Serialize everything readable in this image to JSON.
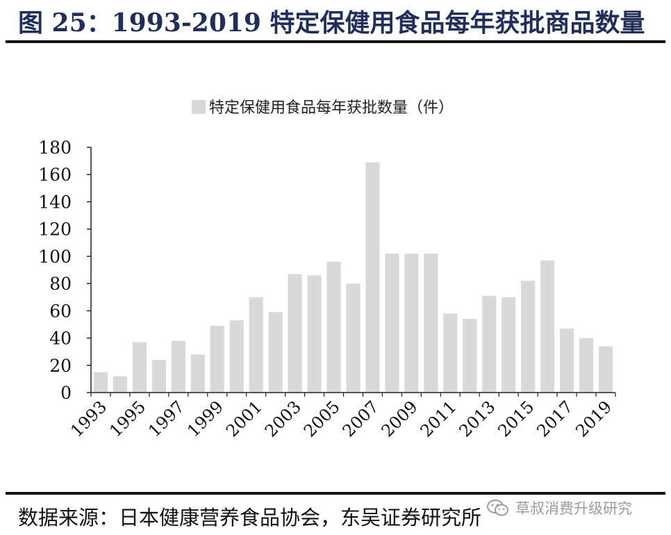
{
  "header": {
    "title": "图 25：1993-2019 特定保健用食品每年获批商品数量"
  },
  "chart_data": {
    "type": "bar",
    "title": "",
    "xlabel": "",
    "ylabel": "",
    "legend": {
      "label": "特定保健用食品每年获批数量（件）",
      "placement": "top-center"
    },
    "ylim": [
      0,
      180
    ],
    "yticks": [
      0,
      20,
      40,
      60,
      80,
      100,
      120,
      140,
      160,
      180
    ],
    "grid": false,
    "bar_color": "#d9d9d9",
    "categories": [
      "1993",
      "1994",
      "1995",
      "1996",
      "1997",
      "1998",
      "1999",
      "2000",
      "2001",
      "2002",
      "2003",
      "2004",
      "2005",
      "2006",
      "2007",
      "2008",
      "2009",
      "2010",
      "2011",
      "2012",
      "2013",
      "2014",
      "2015",
      "2016",
      "2017",
      "2018",
      "2019"
    ],
    "x_tick_labels": [
      "1993",
      "1995",
      "1997",
      "1999",
      "2001",
      "2003",
      "2005",
      "2007",
      "2009",
      "2011",
      "2013",
      "2015",
      "2017",
      "2019"
    ],
    "series": [
      {
        "name": "特定保健用食品每年获批数量（件）",
        "values": [
          15,
          12,
          37,
          24,
          38,
          28,
          49,
          53,
          70,
          59,
          87,
          86,
          96,
          80,
          169,
          102,
          102,
          102,
          58,
          54,
          71,
          70,
          82,
          97,
          47,
          40,
          34
        ]
      }
    ]
  },
  "footer": {
    "source": "数据来源：日本健康营养食品协会，东吴证券研究所",
    "watermark": "草叔消费升级研究",
    "watermark_icon": "wechat-icon"
  }
}
